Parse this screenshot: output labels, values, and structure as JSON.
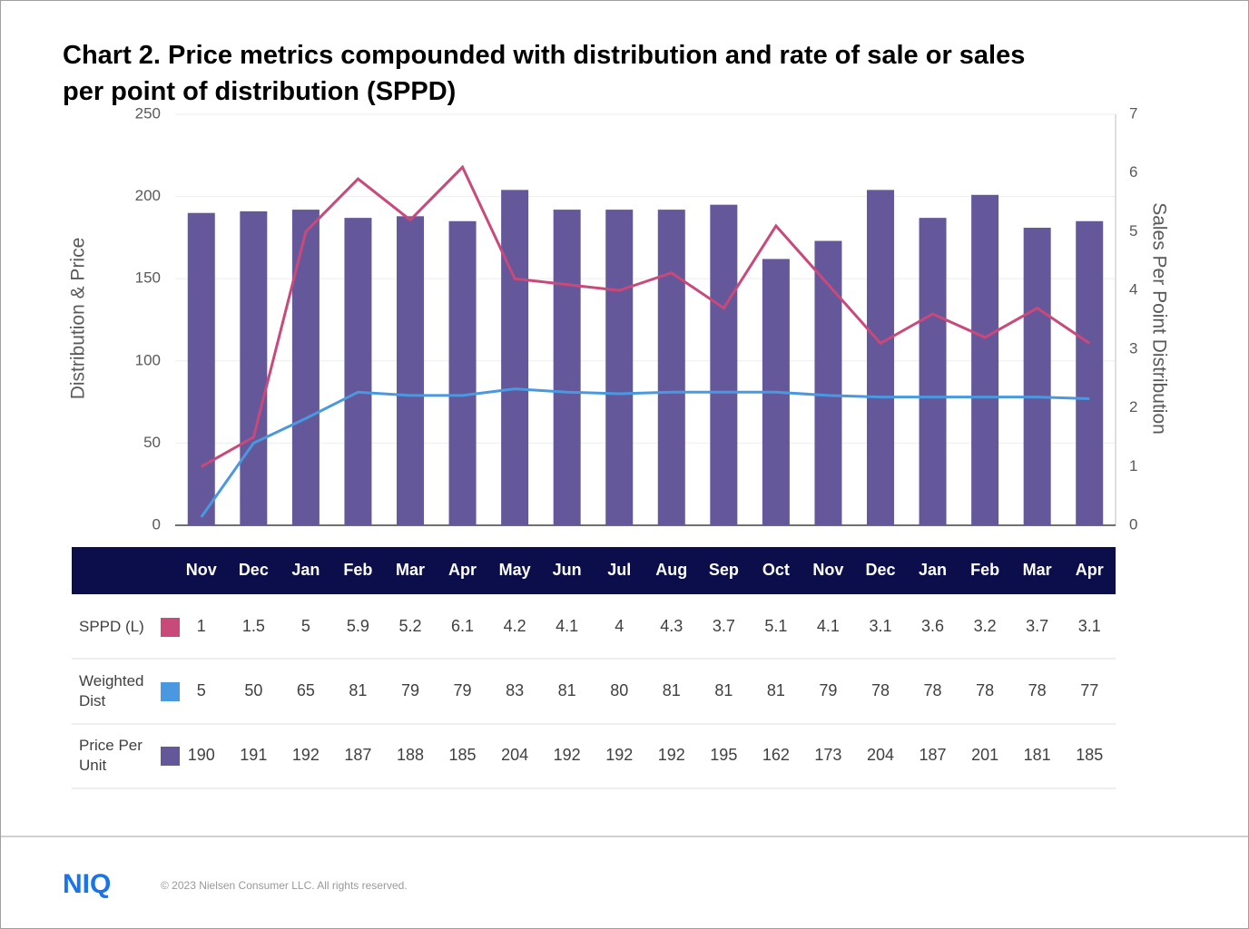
{
  "chart_data": {
    "type": "bar-line",
    "title": "Chart 2. Price metrics compounded with distribution and rate of sale or sales per point of distribution (SPPD)",
    "y_label": "Distribution & Price",
    "y2_label": "Sales Per Point Distribution",
    "categories": [
      "Nov",
      "Dec",
      "Jan",
      "Feb",
      "Mar",
      "Apr",
      "May",
      "Jun",
      "Jul",
      "Aug",
      "Sep",
      "Oct",
      "Nov",
      "Dec",
      "Jan",
      "Feb",
      "Mar",
      "Apr"
    ],
    "series": [
      {
        "name": "SPPD (L)",
        "type": "line",
        "axis": "y2",
        "color": "#c8497a",
        "values": [
          1,
          1.5,
          5,
          5.9,
          5.2,
          6.1,
          4.2,
          4.1,
          4,
          4.3,
          3.7,
          5.1,
          4.1,
          3.1,
          3.6,
          3.2,
          3.7,
          3.1
        ]
      },
      {
        "name": "Weighted Dist",
        "type": "line",
        "axis": "y",
        "color": "#4a98e0",
        "values": [
          5,
          50,
          65,
          81,
          79,
          79,
          83,
          81,
          80,
          81,
          81,
          81,
          79,
          78,
          78,
          78,
          78,
          77
        ]
      },
      {
        "name": "Price Per Unit",
        "type": "bar",
        "axis": "y",
        "color": "#65589a",
        "values": [
          190,
          191,
          192,
          187,
          188,
          185,
          204,
          192,
          192,
          192,
          195,
          162,
          173,
          204,
          187,
          201,
          181,
          185
        ]
      }
    ],
    "ylim": [
      0,
      250
    ],
    "yticks": [
      0,
      50,
      100,
      150,
      200,
      250
    ],
    "y2lim": [
      0,
      7
    ],
    "y2ticks": [
      0,
      1,
      2,
      3,
      4,
      5,
      6,
      7
    ],
    "grid": true
  },
  "footer": {
    "logo": "NIQ",
    "copyright": "© 2023 Nielsen Consumer LLC. All rights reserved."
  }
}
